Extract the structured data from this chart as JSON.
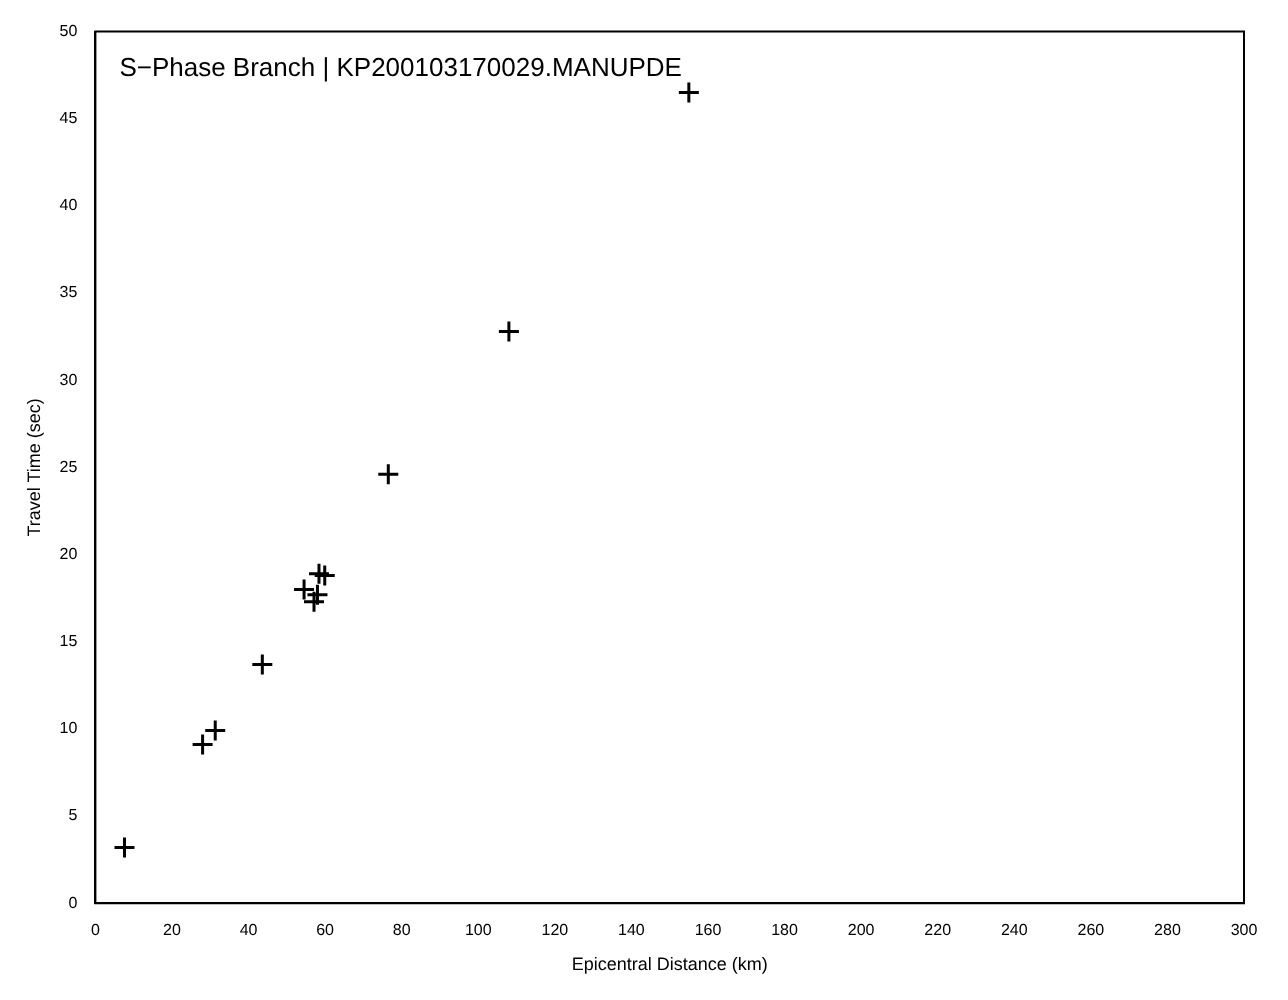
{
  "chart_data": {
    "type": "scatter",
    "title": "S−Phase Branch | KP200103170029.MANUPDE",
    "xlabel": "Epicentral Distance (km)",
    "ylabel": "Travel Time (sec)",
    "x": [
      7.6,
      28.0,
      31.3,
      43.6,
      54.5,
      57.1,
      58.0,
      58.4,
      59.9,
      76.5,
      108,
      155
    ],
    "values": [
      3.2,
      9.1,
      9.9,
      13.7,
      18.0,
      17.3,
      17.7,
      18.9,
      18.8,
      24.6,
      32.8,
      46.5
    ],
    "color": "#000000",
    "marker": "cross",
    "xlim": [
      0,
      300
    ],
    "xticks": [
      0,
      20,
      40,
      60,
      80,
      100,
      120,
      140,
      160,
      180,
      200,
      220,
      240,
      260,
      280,
      300
    ],
    "ylim": [
      0,
      50
    ],
    "yticks": [
      0,
      5,
      10,
      15,
      20,
      25,
      30,
      35,
      40,
      45,
      50
    ],
    "grid": false,
    "legend": false
  }
}
